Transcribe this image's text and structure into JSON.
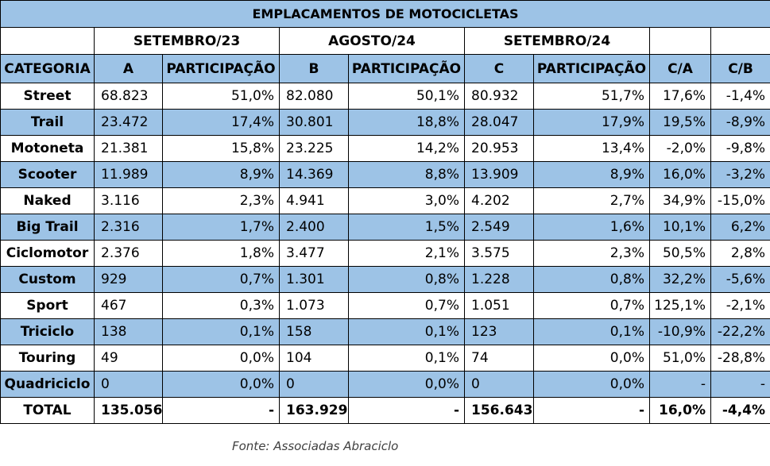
{
  "chart_data": {
    "type": "table",
    "title": "EMPLACAMENTOS DE MOTOCICLETAS",
    "period_headers": [
      "SETEMBRO/23",
      "AGOSTO/24",
      "SETEMBRO/24"
    ],
    "columns": [
      "CATEGORIA",
      "A",
      "PARTICIPAÇÃO",
      "B",
      "PARTICIPAÇÃO",
      "C",
      "PARTICIPAÇÃO",
      "C/A",
      "C/B"
    ],
    "rows": [
      [
        "Street",
        "68.823",
        "51,0%",
        "82.080",
        "50,1%",
        "80.932",
        "51,7%",
        "17,6%",
        "-1,4%"
      ],
      [
        "Trail",
        "23.472",
        "17,4%",
        "30.801",
        "18,8%",
        "28.047",
        "17,9%",
        "19,5%",
        "-8,9%"
      ],
      [
        "Motoneta",
        "21.381",
        "15,8%",
        "23.225",
        "14,2%",
        "20.953",
        "13,4%",
        "-2,0%",
        "-9,8%"
      ],
      [
        "Scooter",
        "11.989",
        "8,9%",
        "14.369",
        "8,8%",
        "13.909",
        "8,9%",
        "16,0%",
        "-3,2%"
      ],
      [
        "Naked",
        "3.116",
        "2,3%",
        "4.941",
        "3,0%",
        "4.202",
        "2,7%",
        "34,9%",
        "-15,0%"
      ],
      [
        "Big Trail",
        "2.316",
        "1,7%",
        "2.400",
        "1,5%",
        "2.549",
        "1,6%",
        "10,1%",
        "6,2%"
      ],
      [
        "Ciclomotor",
        "2.376",
        "1,8%",
        "3.477",
        "2,1%",
        "3.575",
        "2,3%",
        "50,5%",
        "2,8%"
      ],
      [
        "Custom",
        "929",
        "0,7%",
        "1.301",
        "0,8%",
        "1.228",
        "0,8%",
        "32,2%",
        "-5,6%"
      ],
      [
        "Sport",
        "467",
        "0,3%",
        "1.073",
        "0,7%",
        "1.051",
        "0,7%",
        "125,1%",
        "-2,1%"
      ],
      [
        "Triciclo",
        "138",
        "0,1%",
        "158",
        "0,1%",
        "123",
        "0,1%",
        "-10,9%",
        "-22,2%"
      ],
      [
        "Touring",
        "49",
        "0,0%",
        "104",
        "0,1%",
        "74",
        "0,0%",
        "51,0%",
        "-28,8%"
      ],
      [
        "Quadriciclo",
        "0",
        "0,0%",
        "0",
        "0,0%",
        "0",
        "0,0%",
        "-",
        "-"
      ]
    ],
    "total": [
      "TOTAL",
      "135.056",
      "-",
      "163.929",
      "-",
      "156.643",
      "-",
      "16,0%",
      "-4,4%"
    ],
    "source": "Fonte: Associadas Abraciclo"
  },
  "colors": {
    "band": "#9dc3e6",
    "border": "#000000",
    "background": "#ffffff"
  }
}
